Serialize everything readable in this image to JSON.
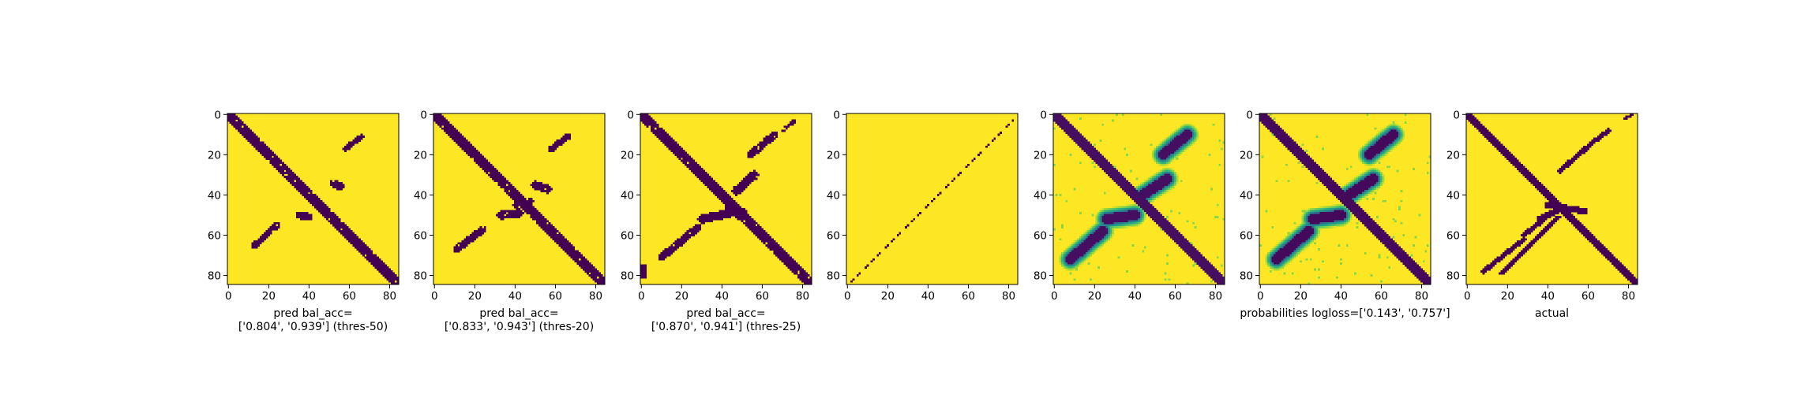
{
  "chart_data": [
    {
      "type": "heatmap",
      "colormap": "viridis",
      "matrix_size": 85,
      "xticks": [
        0,
        20,
        40,
        60,
        80
      ],
      "yticks": [
        0,
        20,
        40,
        60,
        80
      ],
      "mode": "binary",
      "caption_lines": [
        "pred bal_acc=",
        "['0.804', '0.939'] (thres-50)"
      ],
      "balanced_accuracy": [
        0.804,
        0.939
      ],
      "threshold": 50
    },
    {
      "type": "heatmap",
      "colormap": "viridis",
      "matrix_size": 85,
      "xticks": [
        0,
        20,
        40,
        60,
        80
      ],
      "yticks": [
        0,
        20,
        40,
        60,
        80
      ],
      "mode": "binary",
      "caption_lines": [
        "pred bal_acc=",
        "['0.833', '0.943'] (thres-20)"
      ],
      "balanced_accuracy": [
        0.833,
        0.943
      ],
      "threshold": 20
    },
    {
      "type": "heatmap",
      "colormap": "viridis",
      "matrix_size": 85,
      "xticks": [
        0,
        20,
        40,
        60,
        80
      ],
      "yticks": [
        0,
        20,
        40,
        60,
        80
      ],
      "mode": "binary",
      "caption_lines": [
        "pred bal_acc=",
        "['0.870', '0.941'] (thres-25)"
      ],
      "balanced_accuracy": [
        0.87,
        0.941
      ],
      "threshold": 25
    },
    {
      "type": "heatmap",
      "colormap": "viridis",
      "matrix_size": 85,
      "xticks": [
        0,
        20,
        40,
        60,
        80
      ],
      "yticks": [
        0,
        20,
        40,
        60,
        80
      ],
      "mode": "sparse",
      "caption_lines": []
    },
    {
      "type": "heatmap",
      "colormap": "viridis",
      "matrix_size": 85,
      "xticks": [
        0,
        20,
        40,
        60,
        80
      ],
      "yticks": [
        0,
        20,
        40,
        60,
        80
      ],
      "mode": "continuous",
      "caption_lines": []
    },
    {
      "type": "heatmap",
      "colormap": "viridis",
      "matrix_size": 85,
      "xticks": [
        0,
        20,
        40,
        60,
        80
      ],
      "yticks": [
        0,
        20,
        40,
        60,
        80
      ],
      "mode": "probability",
      "caption_lines": [
        "probabilities logloss=['0.143', '0.757']"
      ],
      "logloss": [
        0.143,
        0.757
      ]
    },
    {
      "type": "heatmap",
      "colormap": "viridis",
      "matrix_size": 85,
      "xticks": [
        0,
        20,
        40,
        60,
        80
      ],
      "yticks": [
        0,
        20,
        40,
        60,
        80
      ],
      "mode": "binary",
      "caption_lines": [
        "actual"
      ]
    }
  ]
}
